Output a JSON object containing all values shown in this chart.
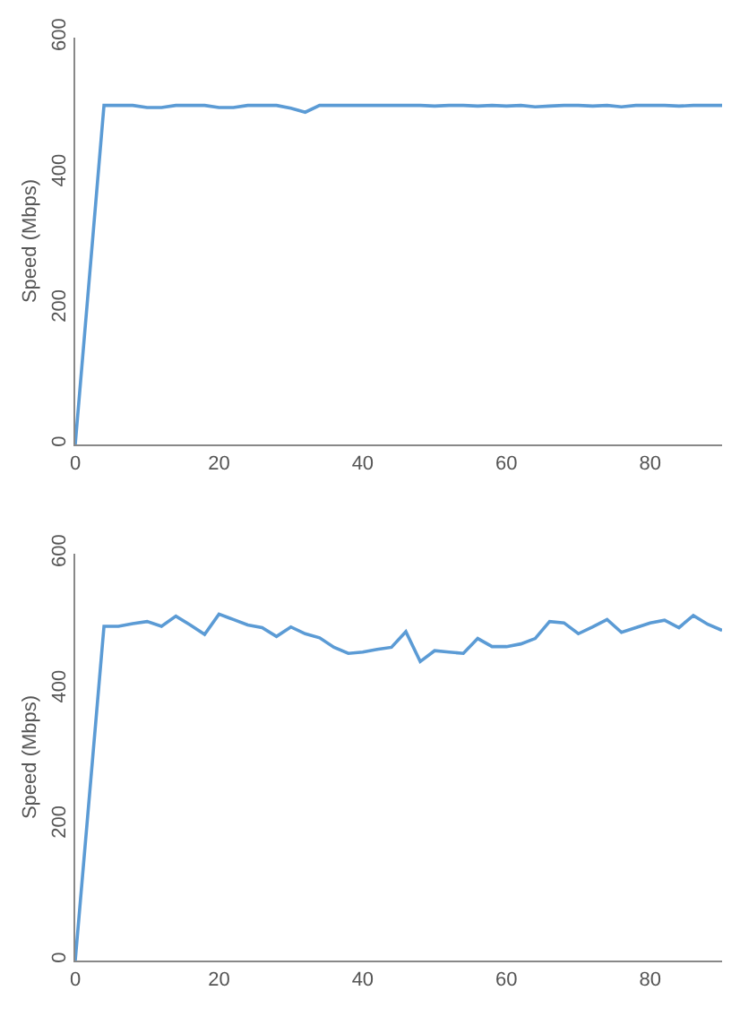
{
  "chart_data": [
    {
      "type": "line",
      "ylabel": "Speed (Mbps)",
      "x": [
        0,
        4,
        6,
        8,
        10,
        12,
        14,
        16,
        18,
        20,
        22,
        24,
        26,
        28,
        30,
        32,
        34,
        36,
        38,
        40,
        42,
        44,
        46,
        48,
        50,
        52,
        54,
        56,
        58,
        60,
        62,
        64,
        66,
        68,
        70,
        72,
        74,
        76,
        78,
        80,
        82,
        84,
        86,
        88,
        90
      ],
      "series": [
        {
          "color": "#5b9bd5",
          "values": [
            0,
            500,
            500,
            500,
            497,
            497,
            500,
            500,
            500,
            497,
            497,
            500,
            500,
            500,
            496,
            490,
            500,
            500,
            500,
            500,
            500,
            500,
            500,
            500,
            499,
            500,
            500,
            499,
            500,
            499,
            500,
            498,
            499,
            500,
            500,
            499,
            500,
            498,
            500,
            500,
            500,
            499,
            500,
            500,
            500
          ]
        }
      ],
      "xlim": [
        0,
        90
      ],
      "ylim": [
        0,
        600
      ],
      "xticks": [
        0,
        20,
        40,
        60,
        80
      ],
      "yticks": [
        0,
        200,
        400,
        600
      ],
      "line_style": "solid"
    },
    {
      "type": "line",
      "ylabel": "Speed (Mbps)",
      "x": [
        0,
        4,
        6,
        8,
        10,
        12,
        14,
        16,
        18,
        20,
        22,
        24,
        26,
        28,
        30,
        32,
        34,
        36,
        38,
        40,
        42,
        44,
        46,
        48,
        50,
        52,
        54,
        56,
        58,
        60,
        62,
        64,
        66,
        68,
        70,
        72,
        74,
        76,
        78,
        80,
        82,
        84,
        86,
        88,
        90
      ],
      "series": [
        {
          "color": "#5b9bd5",
          "values": [
            0,
            493,
            493,
            497,
            500,
            493,
            508,
            495,
            481,
            511,
            503,
            495,
            491,
            478,
            492,
            482,
            476,
            462,
            453,
            455,
            459,
            462,
            485,
            441,
            457,
            455,
            453,
            475,
            463,
            463,
            467,
            475,
            500,
            498,
            482,
            492,
            503,
            484,
            491,
            498,
            502,
            491,
            509,
            496,
            487
          ]
        }
      ],
      "xlim": [
        0,
        90
      ],
      "ylim": [
        0,
        600
      ],
      "xticks": [
        0,
        20,
        40,
        60,
        80
      ],
      "yticks": [
        0,
        200,
        400,
        600
      ],
      "line_style": "solid"
    }
  ]
}
